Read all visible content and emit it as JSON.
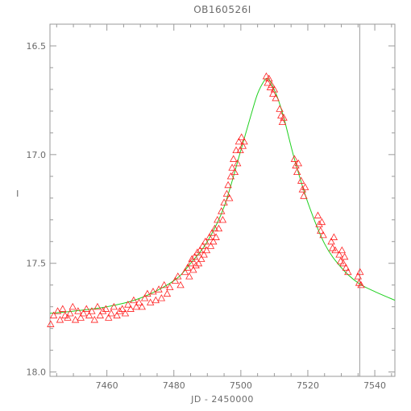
{
  "chart_data": {
    "type": "scatter",
    "title": "OB160526I",
    "xlabel": "JD - 2450000",
    "ylabel": "I",
    "xlim": [
      7543,
      7546
    ],
    "xlim_note": "",
    "x_range": [
      7543,
      7546
    ],
    "ylim": [
      18.0,
      16.4
    ],
    "y_inverted": true,
    "x_ticks": [
      7460,
      7480,
      7500,
      7520,
      7540
    ],
    "x_tick_labels": [
      "7460",
      "7480",
      "7500",
      "7520",
      "7540"
    ],
    "y_ticks": [
      16.5,
      17.0,
      17.5,
      18.0
    ],
    "y_tick_labels": [
      "16.5",
      "17.0",
      "17.5",
      "18.0"
    ],
    "grid": false,
    "vertical_marker_x": 7535.5,
    "model_curve": {
      "color": "#1fd01f",
      "x": [
        7443,
        7450,
        7460,
        7470,
        7480,
        7485,
        7490,
        7495,
        7500,
        7503,
        7505,
        7507,
        7508,
        7509,
        7511,
        7513,
        7516,
        7520,
        7525,
        7530,
        7535,
        7540,
        7546
      ],
      "y": [
        17.73,
        17.72,
        17.7,
        17.66,
        17.58,
        17.5,
        17.4,
        17.24,
        16.98,
        16.82,
        16.72,
        16.66,
        16.65,
        16.67,
        16.74,
        16.84,
        17.02,
        17.22,
        17.41,
        17.52,
        17.59,
        17.63,
        17.67
      ]
    },
    "series": [
      {
        "marker": "triangle",
        "color": "#ff2020",
        "x": [
          7443.2,
          7444.1,
          7445.3,
          7446.0,
          7446.8,
          7447.5,
          7448.3,
          7449.0,
          7449.8,
          7450.6,
          7451.4,
          7452.2,
          7453.0,
          7453.9,
          7454.7,
          7455.5,
          7456.3,
          7457.2,
          7458.0,
          7458.8,
          7459.7,
          7460.5,
          7461.3,
          7462.1,
          7463.0,
          7463.8,
          7464.6,
          7465.5,
          7466.3,
          7467.1,
          7468.0,
          7468.8,
          7469.6,
          7470.5,
          7471.3,
          7472.1,
          7473.0,
          7473.8,
          7474.6,
          7475.5,
          7476.3,
          7477.1,
          7478.0,
          7478.8,
          7480.4,
          7481.2,
          7482.0,
          7483.3,
          7484.1,
          7484.6,
          7485.0,
          7485.4,
          7485.8,
          7486.2,
          7486.6,
          7487.0,
          7487.4,
          7487.8,
          7488.2,
          7488.6,
          7489.0,
          7489.4,
          7489.8,
          7490.6,
          7491.0,
          7491.4,
          7491.8,
          7492.2,
          7492.6,
          7493.0,
          7493.4,
          7494.2,
          7494.6,
          7495.0,
          7495.8,
          7496.2,
          7496.6,
          7497.0,
          7497.4,
          7497.8,
          7498.2,
          7498.6,
          7499.0,
          7499.4,
          7499.8,
          7500.2,
          7500.6,
          7501.0,
          7507.6,
          7508.0,
          7508.4,
          7508.8,
          7509.2,
          7509.6,
          7510.0,
          7510.4,
          7511.6,
          7512.0,
          7512.4,
          7512.8,
          7516.0,
          7516.4,
          7516.8,
          7517.2,
          7518.0,
          7518.4,
          7518.8,
          7519.2,
          7523.0,
          7523.4,
          7523.8,
          7524.2,
          7524.6,
          7527.0,
          7527.4,
          7527.8,
          7528.2,
          7529.4,
          7529.8,
          7530.2,
          7530.6,
          7531.0,
          7531.4,
          7532.0,
          7535.0,
          7535.3,
          7535.6,
          7535.9
        ],
        "y": [
          17.78,
          17.74,
          17.72,
          17.76,
          17.71,
          17.74,
          17.75,
          17.73,
          17.7,
          17.76,
          17.72,
          17.75,
          17.73,
          17.71,
          17.74,
          17.72,
          17.76,
          17.7,
          17.74,
          17.72,
          17.71,
          17.75,
          17.73,
          17.7,
          17.74,
          17.72,
          17.71,
          17.73,
          17.69,
          17.71,
          17.67,
          17.7,
          17.68,
          17.7,
          17.66,
          17.64,
          17.68,
          17.63,
          17.67,
          17.62,
          17.66,
          17.6,
          17.64,
          17.61,
          17.58,
          17.56,
          17.6,
          17.54,
          17.52,
          17.56,
          17.5,
          17.48,
          17.53,
          17.47,
          17.51,
          17.45,
          17.5,
          17.44,
          17.48,
          17.42,
          17.46,
          17.4,
          17.44,
          17.38,
          17.42,
          17.36,
          17.4,
          17.34,
          17.38,
          17.3,
          17.34,
          17.26,
          17.3,
          17.22,
          17.18,
          17.14,
          17.2,
          17.1,
          17.06,
          17.02,
          17.08,
          16.98,
          17.04,
          16.94,
          16.98,
          16.92,
          16.96,
          16.94,
          16.64,
          16.67,
          16.65,
          16.69,
          16.68,
          16.72,
          16.7,
          16.74,
          16.79,
          16.82,
          16.85,
          16.83,
          17.02,
          17.05,
          17.08,
          17.04,
          17.12,
          17.16,
          17.19,
          17.15,
          17.28,
          17.32,
          17.35,
          17.31,
          17.37,
          17.4,
          17.43,
          17.38,
          17.44,
          17.46,
          17.49,
          17.44,
          17.5,
          17.47,
          17.52,
          17.54,
          17.56,
          17.59,
          17.54,
          17.6
        ]
      }
    ]
  }
}
